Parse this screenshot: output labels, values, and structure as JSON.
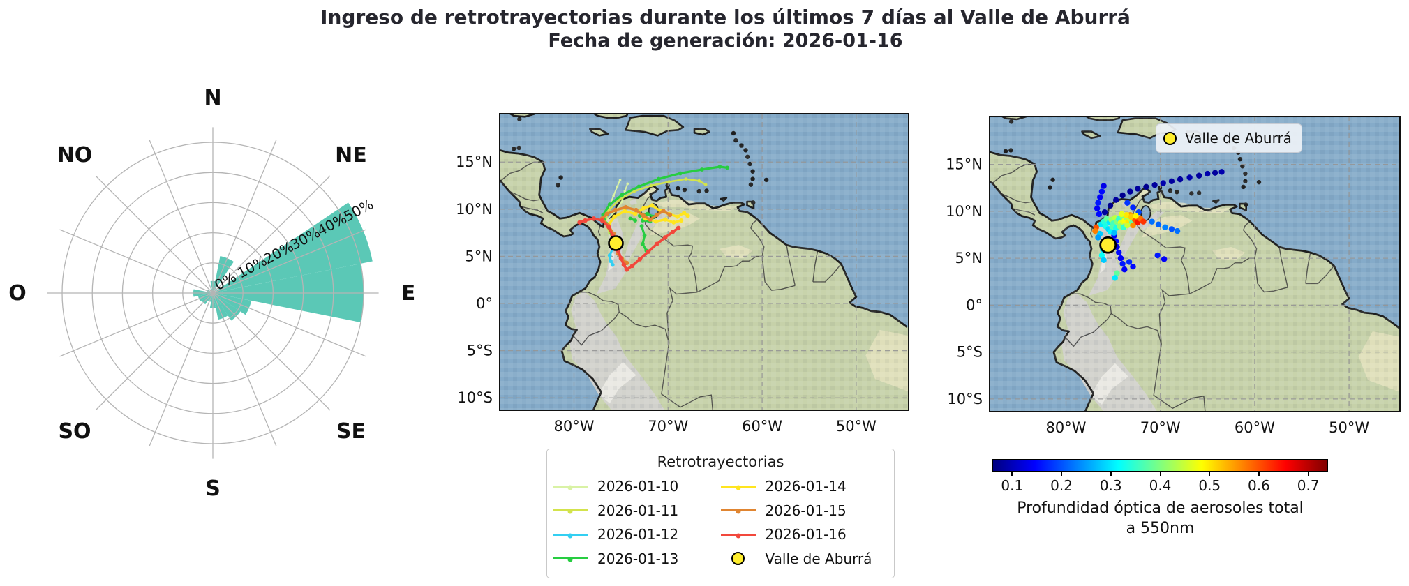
{
  "title": {
    "line1": "Ingreso de retrotrayectorias durante los últimos 7 días al Valle de Aburrá",
    "line2": "Fecha de generación: 2026-01-16"
  },
  "chart_data": [
    {
      "type": "windrose",
      "direction_labels": [
        "N",
        "NE",
        "E",
        "SE",
        "S",
        "SO",
        "O",
        "NO"
      ],
      "ring_labels": [
        {
          "value": 0,
          "label": "0%"
        },
        {
          "value": 10,
          "label": "10%"
        },
        {
          "value": 20,
          "label": "20%"
        },
        {
          "value": 30,
          "label": "30%"
        },
        {
          "value": 40,
          "label": "40%"
        },
        {
          "value": 50,
          "label": "50%"
        }
      ],
      "r_max": 55,
      "label_angle_deg": 28,
      "petal_color": "#5bc8b6",
      "grid_color": "#b5b5b5",
      "sectors": [
        {
          "dir": "N",
          "value": 4
        },
        {
          "dir": "NNE",
          "value": 12.5
        },
        {
          "dir": "NE",
          "value": 0
        },
        {
          "dir": "ENE",
          "value": 54
        },
        {
          "dir": "E",
          "value": 50
        },
        {
          "dir": "ESE",
          "value": 13
        },
        {
          "dir": "SE",
          "value": 11
        },
        {
          "dir": "SSE",
          "value": 9
        },
        {
          "dir": "S",
          "value": 5
        },
        {
          "dir": "SSO",
          "value": 3
        },
        {
          "dir": "SO",
          "value": 4.5
        },
        {
          "dir": "OSO",
          "value": 5
        },
        {
          "dir": "O",
          "value": 6.5
        },
        {
          "dir": "ONO",
          "value": 2
        },
        {
          "dir": "NO",
          "value": 0
        },
        {
          "dir": "NNO",
          "value": 1.5
        }
      ]
    },
    {
      "type": "map-trajectories",
      "legend_title": "Retrotrayectorias",
      "marker": {
        "label": "Valle de Aburrá",
        "lon": -75.55,
        "lat": 6.4,
        "color": "#ffee2e"
      },
      "lon_ticks": [
        {
          "value": -80,
          "label": "80°W"
        },
        {
          "value": -70,
          "label": "70°W"
        },
        {
          "value": -60,
          "label": "60°W"
        },
        {
          "value": -50,
          "label": "50°W"
        }
      ],
      "lat_ticks": [
        {
          "value": 15,
          "label": "15°N"
        },
        {
          "value": 10,
          "label": "10°N"
        },
        {
          "value": 5,
          "label": "5°N"
        },
        {
          "value": 0,
          "label": "0°"
        },
        {
          "value": -5,
          "label": "5°S"
        },
        {
          "value": -10,
          "label": "10°S"
        }
      ],
      "series": [
        {
          "date": "2026-01-10",
          "color": "#d9f2a5",
          "width": 2,
          "paths": [
            [
              [
                -75.55,
                6.4
              ],
              [
                -76.1,
                7.3
              ],
              [
                -76.5,
                8.3
              ],
              [
                -76.6,
                9.3
              ],
              [
                -76.2,
                10.4
              ],
              [
                -75.8,
                11.4
              ],
              [
                -75.4,
                12.4
              ],
              [
                -75.1,
                13.1
              ]
            ],
            [
              [
                -76.4,
                9.0
              ],
              [
                -75.6,
                9.8
              ],
              [
                -74.9,
                10.8
              ],
              [
                -74.6,
                11.9
              ],
              [
                -74.3,
                12.7
              ]
            ]
          ]
        },
        {
          "date": "2026-01-11",
          "color": "#d3e34c",
          "width": 2.6,
          "paths": [
            [
              [
                -75.55,
                6.4
              ],
              [
                -76.2,
                7.5
              ],
              [
                -76.7,
                8.7
              ],
              [
                -76.3,
                9.9
              ],
              [
                -75.2,
                11.0
              ],
              [
                -73.6,
                11.9
              ],
              [
                -71.8,
                12.5
              ],
              [
                -69.9,
                12.9
              ],
              [
                -68.1,
                13.2
              ],
              [
                -66.7,
                13.0
              ],
              [
                -66.0,
                12.6
              ]
            ]
          ]
        },
        {
          "date": "2026-01-12",
          "color": "#33cff2",
          "width": 3.2,
          "paths": [
            [
              [
                -75.55,
                6.4
              ],
              [
                -75.9,
                5.8
              ],
              [
                -76.2,
                5.1
              ],
              [
                -76.1,
                4.5
              ],
              [
                -75.9,
                4.1
              ]
            ]
          ]
        },
        {
          "date": "2026-01-13",
          "color": "#27cd41",
          "width": 3.2,
          "paths": [
            [
              [
                -75.55,
                6.4
              ],
              [
                -76.0,
                7.4
              ],
              [
                -76.6,
                8.5
              ],
              [
                -76.9,
                9.4
              ],
              [
                -76.2,
                10.5
              ],
              [
                -74.9,
                11.5
              ],
              [
                -73.1,
                12.4
              ],
              [
                -71.0,
                13.2
              ],
              [
                -68.7,
                13.8
              ],
              [
                -66.4,
                14.2
              ],
              [
                -64.5,
                14.5
              ],
              [
                -63.7,
                14.4
              ]
            ],
            [
              [
                -73.0,
                9.3
              ],
              [
                -72.2,
                9.5
              ],
              [
                -71.5,
                9.2
              ],
              [
                -71.9,
                8.7
              ],
              [
                -72.7,
                8.8
              ]
            ],
            [
              [
                -72.8,
                8.2
              ],
              [
                -72.5,
                7.2
              ],
              [
                -72.7,
                6.3
              ],
              [
                -72.3,
                5.6
              ]
            ],
            [
              [
                -74.0,
                9.0
              ],
              [
                -73.5,
                8.8
              ]
            ]
          ]
        },
        {
          "date": "2026-01-14",
          "color": "#ffe51f",
          "width": 3.4,
          "paths": [
            [
              [
                -75.55,
                6.4
              ],
              [
                -75.9,
                7.3
              ],
              [
                -76.3,
                8.4
              ],
              [
                -75.7,
                9.2
              ],
              [
                -74.6,
                9.8
              ],
              [
                -73.5,
                9.5
              ],
              [
                -72.6,
                10.1
              ],
              [
                -71.7,
                10.4
              ],
              [
                -70.8,
                9.8
              ],
              [
                -69.9,
                9.5
              ],
              [
                -69.0,
                9.2
              ],
              [
                -68.3,
                9.6
              ],
              [
                -67.9,
                9.3
              ]
            ],
            [
              [
                -72.4,
                9.0
              ],
              [
                -71.3,
                8.7
              ],
              [
                -70.3,
                8.9
              ],
              [
                -69.4,
                8.6
              ],
              [
                -68.6,
                8.8
              ]
            ]
          ]
        },
        {
          "date": "2026-01-15",
          "color": "#e08531",
          "width": 3.6,
          "paths": [
            [
              [
                -75.55,
                6.4
              ],
              [
                -75.8,
                7.4
              ],
              [
                -76.4,
                8.3
              ],
              [
                -77.0,
                9.0
              ],
              [
                -76.5,
                9.5
              ],
              [
                -75.6,
                9.9
              ],
              [
                -74.5,
                10.2
              ],
              [
                -73.4,
                9.9
              ],
              [
                -72.6,
                9.3
              ],
              [
                -71.9,
                8.9
              ],
              [
                -71.2,
                9.4
              ],
              [
                -70.5,
                9.8
              ],
              [
                -69.8,
                9.4
              ]
            ],
            [
              [
                -75.3,
                5.3
              ],
              [
                -74.9,
                4.7
              ],
              [
                -74.4,
                4.3
              ]
            ]
          ]
        },
        {
          "date": "2026-01-16",
          "color": "#f2483c",
          "width": 3.6,
          "paths": [
            [
              [
                -75.55,
                6.4
              ],
              [
                -75.3,
                5.6
              ],
              [
                -75.0,
                4.8
              ],
              [
                -74.7,
                4.1
              ],
              [
                -74.4,
                3.6
              ],
              [
                -73.8,
                4.0
              ],
              [
                -73.0,
                4.7
              ],
              [
                -72.1,
                5.5
              ],
              [
                -71.2,
                6.3
              ],
              [
                -70.3,
                7.0
              ],
              [
                -69.5,
                7.6
              ],
              [
                -68.9,
                8.0
              ]
            ],
            [
              [
                -75.55,
                6.4
              ],
              [
                -75.9,
                7.2
              ],
              [
                -76.3,
                8.1
              ],
              [
                -77.0,
                8.8
              ],
              [
                -77.9,
                9.0
              ],
              [
                -78.8,
                8.8
              ],
              [
                -79.4,
                8.6
              ]
            ]
          ]
        }
      ]
    },
    {
      "type": "map-scatter",
      "legend_label": "Valle de Aburrá",
      "marker": {
        "label": "Valle de Aburrá",
        "lon": -75.55,
        "lat": 6.4,
        "color": "#ffee2e"
      },
      "colorbar": {
        "label_line1": "Profundidad óptica de aerosoles total",
        "label_line2": "a 550nm",
        "vmin": 0.06,
        "vmax": 0.74,
        "ticks": [
          0.1,
          0.2,
          0.3,
          0.4,
          0.5,
          0.6,
          0.7
        ]
      },
      "points": [
        [
          -75.9,
          9.9,
          0.08
        ],
        [
          -75.3,
          10.6,
          0.07
        ],
        [
          -74.7,
          11.2,
          0.08
        ],
        [
          -74.0,
          11.7,
          0.07
        ],
        [
          -73.2,
          12.1,
          0.08
        ],
        [
          -72.4,
          12.4,
          0.08
        ],
        [
          -71.5,
          12.6,
          0.07
        ],
        [
          -70.6,
          12.8,
          0.08
        ],
        [
          -69.7,
          13.0,
          0.09
        ],
        [
          -68.8,
          13.2,
          0.08
        ],
        [
          -67.9,
          13.4,
          0.08
        ],
        [
          -66.9,
          13.6,
          0.09
        ],
        [
          -65.9,
          13.8,
          0.08
        ],
        [
          -65.0,
          14.0,
          0.09
        ],
        [
          -64.2,
          14.1,
          0.08
        ],
        [
          -63.5,
          14.2,
          0.09
        ],
        [
          -76.5,
          9.7,
          0.15
        ],
        [
          -76.7,
          10.3,
          0.14
        ],
        [
          -76.6,
          10.9,
          0.16
        ],
        [
          -76.4,
          11.5,
          0.14
        ],
        [
          -76.2,
          12.1,
          0.15
        ],
        [
          -76.0,
          12.7,
          0.13
        ],
        [
          -73.5,
          10.9,
          0.18
        ],
        [
          -72.9,
          10.4,
          0.17
        ],
        [
          -72.3,
          9.9,
          0.19
        ],
        [
          -74.9,
          7.4,
          0.14
        ],
        [
          -74.7,
          6.8,
          0.15
        ],
        [
          -74.6,
          6.2,
          0.13
        ],
        [
          -74.4,
          5.6,
          0.15
        ],
        [
          -74.2,
          5.0,
          0.14
        ],
        [
          -74.0,
          4.4,
          0.16
        ],
        [
          -73.8,
          3.8,
          0.14
        ],
        [
          -73.3,
          4.6,
          0.17
        ],
        [
          -72.9,
          4.1,
          0.15
        ],
        [
          -70.3,
          5.3,
          0.16
        ],
        [
          -69.6,
          4.9,
          0.14
        ],
        [
          -76.1,
          5.9,
          0.3
        ],
        [
          -76.2,
          5.3,
          0.32
        ],
        [
          -76.0,
          4.8,
          0.28
        ],
        [
          -74.6,
          3.4,
          0.38
        ],
        [
          -74.8,
          2.9,
          0.3
        ],
        [
          -70.9,
          8.9,
          0.22
        ],
        [
          -70.2,
          8.6,
          0.21
        ],
        [
          -69.5,
          8.3,
          0.23
        ],
        [
          -68.8,
          8.1,
          0.2
        ],
        [
          -68.2,
          7.9,
          0.22
        ],
        [
          -76.3,
          8.6,
          0.3
        ],
        [
          -76.0,
          8.9,
          0.34
        ],
        [
          -75.7,
          9.2,
          0.38
        ],
        [
          -75.4,
          8.8,
          0.3
        ],
        [
          -75.2,
          9.1,
          0.42
        ],
        [
          -75.0,
          8.7,
          0.36
        ],
        [
          -74.8,
          9.3,
          0.44
        ],
        [
          -74.6,
          8.9,
          0.4
        ],
        [
          -74.4,
          9.2,
          0.35
        ],
        [
          -74.2,
          8.8,
          0.46
        ],
        [
          -74.0,
          9.4,
          0.4
        ],
        [
          -73.8,
          9.0,
          0.48
        ],
        [
          -73.6,
          9.3,
          0.42
        ],
        [
          -73.4,
          8.9,
          0.5
        ],
        [
          -73.2,
          9.2,
          0.44
        ],
        [
          -73.0,
          8.8,
          0.38
        ],
        [
          -75.8,
          8.4,
          0.33
        ],
        [
          -75.5,
          8.1,
          0.29
        ],
        [
          -75.1,
          8.3,
          0.37
        ],
        [
          -74.7,
          8.2,
          0.33
        ],
        [
          -74.3,
          8.4,
          0.41
        ],
        [
          -73.9,
          8.3,
          0.35
        ],
        [
          -73.5,
          8.5,
          0.45
        ],
        [
          -75.3,
          7.8,
          0.31
        ],
        [
          -74.9,
          7.7,
          0.27
        ],
        [
          -75.8,
          6.9,
          0.26
        ],
        [
          -75.3,
          6.6,
          0.24
        ],
        [
          -76.4,
          7.6,
          0.28
        ],
        [
          -76.6,
          7.2,
          0.25
        ],
        [
          -72.7,
          9.1,
          0.6
        ],
        [
          -72.4,
          8.8,
          0.64
        ],
        [
          -72.1,
          9.2,
          0.58
        ],
        [
          -71.8,
          8.9,
          0.62
        ],
        [
          -72.9,
          8.5,
          0.56
        ],
        [
          -76.8,
          8.3,
          0.6
        ],
        [
          -76.9,
          7.9,
          0.57
        ],
        [
          -73.2,
          9.6,
          0.55
        ],
        [
          -73.6,
          9.6,
          0.5
        ],
        [
          -73.1,
          9.4,
          0.52
        ],
        [
          -72.6,
          9.5,
          0.49
        ],
        [
          -74.1,
          9.7,
          0.47
        ],
        [
          -75.6,
          5.9,
          0.18
        ],
        [
          -75.5,
          6.9,
          0.2
        ],
        [
          -75.2,
          6.1,
          0.22
        ],
        [
          -75.9,
          6.5,
          0.19
        ]
      ]
    }
  ],
  "map_style": {
    "ocean": "#85abc9",
    "land": "#c6d1a9",
    "relief": "#d2d1cd",
    "relief_hi": "#ebeae5",
    "tan": "#e7e3c0",
    "coast": "#1f1f1f",
    "border": "#3a3a3a",
    "grid": "#969696"
  }
}
